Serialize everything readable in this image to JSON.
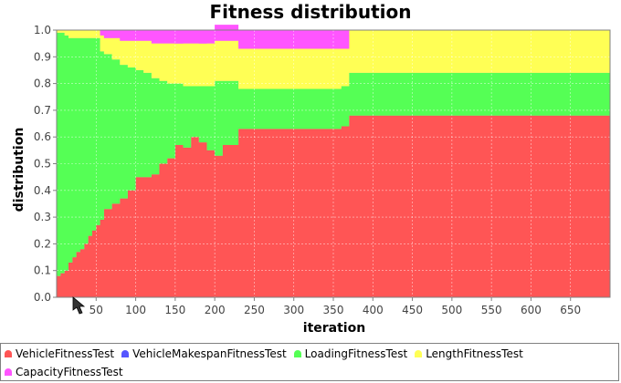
{
  "chart_data": {
    "type": "area",
    "title": "Fitness distribution",
    "xlabel": "iteration",
    "ylabel": "distribution",
    "xlim": [
      0,
      700
    ],
    "ylim": [
      0,
      1.0
    ],
    "xticks": [
      50,
      100,
      150,
      200,
      250,
      300,
      350,
      400,
      450,
      500,
      550,
      600,
      650
    ],
    "yticks": [
      0.0,
      0.1,
      0.2,
      0.3,
      0.4,
      0.5,
      0.6,
      0.7,
      0.8,
      0.9,
      1.0
    ],
    "grid": true,
    "legend_position": "bottom",
    "stacked": true,
    "x": [
      0,
      5,
      10,
      15,
      20,
      25,
      30,
      35,
      40,
      45,
      50,
      55,
      60,
      70,
      80,
      90,
      100,
      110,
      120,
      130,
      140,
      150,
      160,
      170,
      180,
      190,
      200,
      210,
      220,
      230,
      250,
      300,
      360,
      370,
      400,
      500,
      600,
      700
    ],
    "series": [
      {
        "name": "VehicleFitnessTest",
        "color": "#ff5555",
        "values": [
          0.08,
          0.09,
          0.1,
          0.13,
          0.15,
          0.17,
          0.18,
          0.2,
          0.23,
          0.25,
          0.27,
          0.29,
          0.33,
          0.35,
          0.37,
          0.4,
          0.45,
          0.45,
          0.46,
          0.5,
          0.52,
          0.57,
          0.56,
          0.6,
          0.58,
          0.55,
          0.53,
          0.57,
          0.57,
          0.63,
          0.63,
          0.63,
          0.64,
          0.68,
          0.68,
          0.68,
          0.68,
          0.68
        ]
      },
      {
        "name": "VehicleMakespanFitnessTest",
        "color": "#5555ff",
        "values": [
          0,
          0,
          0,
          0,
          0,
          0,
          0,
          0,
          0,
          0,
          0,
          0,
          0,
          0,
          0,
          0,
          0,
          0,
          0,
          0,
          0,
          0,
          0,
          0,
          0,
          0,
          0,
          0,
          0,
          0,
          0,
          0,
          0,
          0,
          0,
          0,
          0,
          0
        ]
      },
      {
        "name": "LoadingFitnessTest",
        "color": "#55ff55",
        "values": [
          0.91,
          0.9,
          0.88,
          0.84,
          0.82,
          0.8,
          0.79,
          0.77,
          0.74,
          0.72,
          0.7,
          0.63,
          0.58,
          0.54,
          0.5,
          0.46,
          0.4,
          0.39,
          0.36,
          0.31,
          0.28,
          0.23,
          0.23,
          0.19,
          0.21,
          0.24,
          0.28,
          0.24,
          0.24,
          0.15,
          0.15,
          0.15,
          0.15,
          0.16,
          0.16,
          0.16,
          0.16,
          0.16
        ]
      },
      {
        "name": "LengthFitnessTest",
        "color": "#ffff55",
        "values": [
          0.01,
          0.01,
          0.02,
          0.03,
          0.03,
          0.03,
          0.03,
          0.03,
          0.03,
          0.03,
          0.03,
          0.06,
          0.06,
          0.08,
          0.09,
          0.1,
          0.11,
          0.12,
          0.13,
          0.14,
          0.15,
          0.15,
          0.16,
          0.16,
          0.16,
          0.16,
          0.15,
          0.15,
          0.15,
          0.15,
          0.15,
          0.15,
          0.14,
          0.16,
          0.16,
          0.16,
          0.16,
          0.16
        ]
      },
      {
        "name": "CapacityFitnessTest",
        "color": "#ff55ff",
        "values": [
          0,
          0,
          0,
          0,
          0,
          0,
          0,
          0,
          0,
          0,
          0,
          0.02,
          0.03,
          0.03,
          0.04,
          0.04,
          0.04,
          0.04,
          0.05,
          0.05,
          0.05,
          0.05,
          0.05,
          0.05,
          0.05,
          0.05,
          0.06,
          0.06,
          0.06,
          0.07,
          0.07,
          0.07,
          0.07,
          0,
          0,
          0,
          0,
          0
        ]
      }
    ]
  }
}
